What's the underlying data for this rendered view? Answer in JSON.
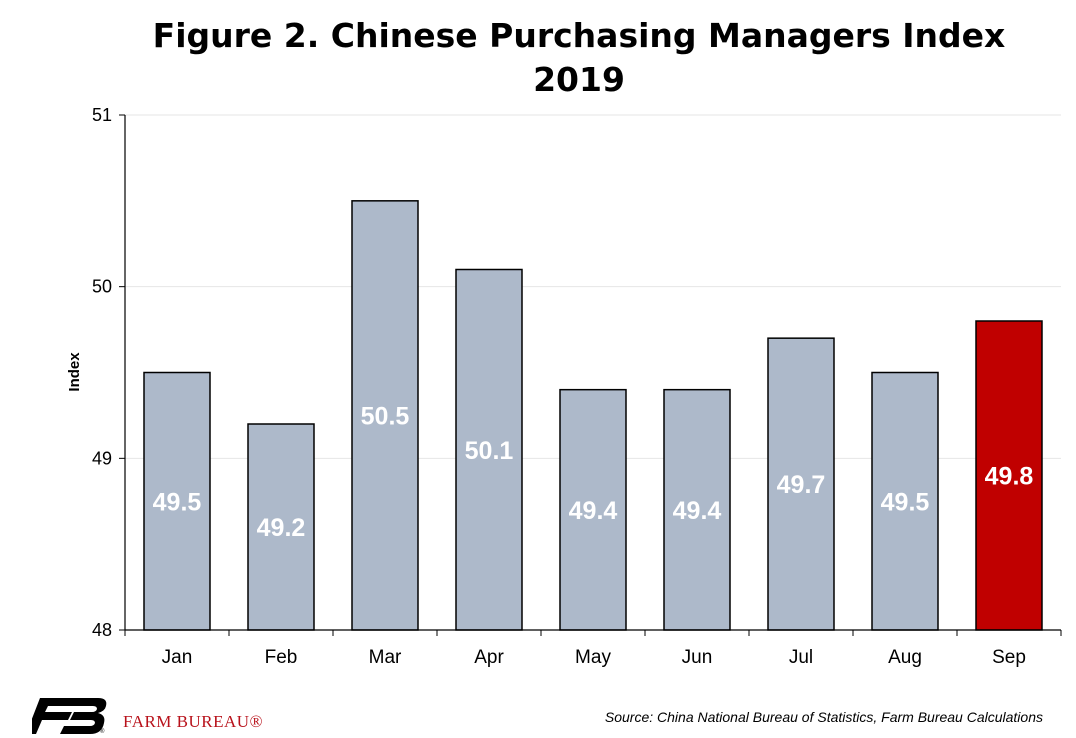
{
  "title": "Figure 2. Chinese Purchasing Managers Index",
  "subtitle": "2019",
  "source": "Source: China National Bureau of Statistics, Farm Bureau Calculations",
  "brand": "FARM BUREAU®",
  "colors": {
    "bar": "#adb9ca",
    "highlight": "#c00000",
    "stroke": "#000000",
    "label": "#ffffff"
  },
  "chart_data": {
    "type": "bar",
    "categories": [
      "Jan",
      "Feb",
      "Mar",
      "Apr",
      "May",
      "Jun",
      "Jul",
      "Aug",
      "Sep"
    ],
    "values": [
      49.5,
      49.2,
      50.5,
      50.1,
      49.4,
      49.4,
      49.7,
      49.5,
      49.8
    ],
    "data_labels": [
      "49.5",
      "49.2",
      "50.5",
      "50.1",
      "49.4",
      "49.4",
      "49.7",
      "49.5",
      "49.8"
    ],
    "highlight_index": 8,
    "xlabel": "",
    "ylabel": "Index",
    "ylim": [
      48,
      51
    ],
    "yticks": [
      48,
      49,
      50,
      51
    ],
    "grid": true,
    "legend": "none"
  }
}
